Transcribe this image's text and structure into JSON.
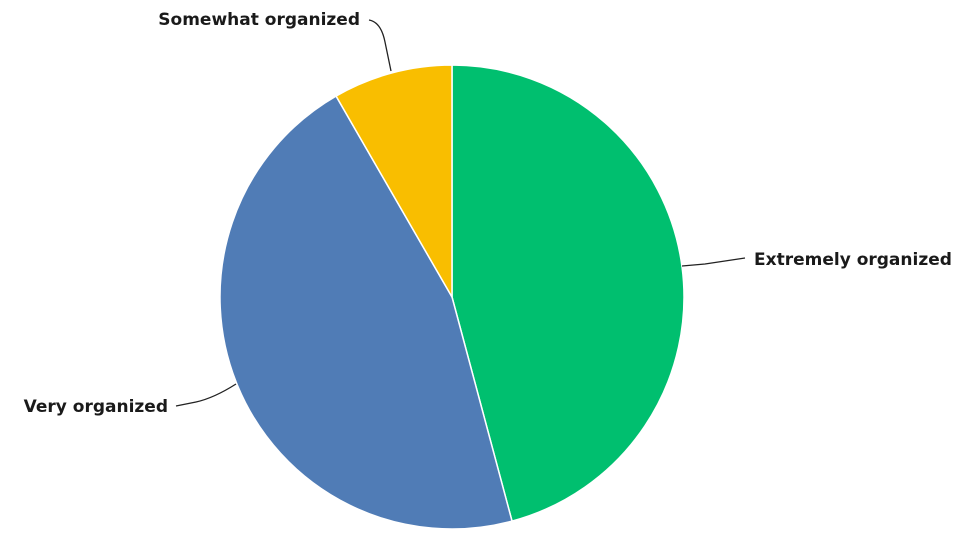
{
  "chart_data": {
    "type": "pie",
    "title": "",
    "slices": [
      {
        "label": "Extremely organized",
        "value": 45.83,
        "color": "#00bf6f"
      },
      {
        "label": "Very organized",
        "value": 45.83,
        "color": "#507cb6"
      },
      {
        "label": "Somewhat organized",
        "value": 8.33,
        "color": "#f9be00"
      }
    ],
    "legend": "none"
  }
}
